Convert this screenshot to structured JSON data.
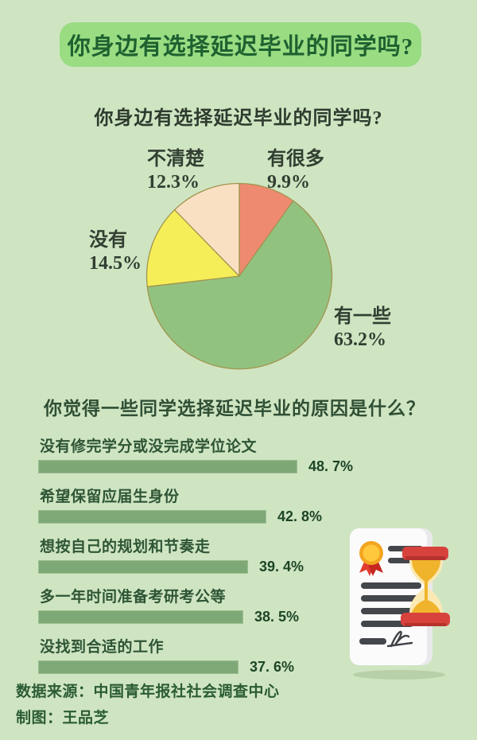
{
  "page_bg": "#cfe5c2",
  "banner": {
    "label": "你身边有选择延迟毕业的同学吗?",
    "bg": "#99dc82",
    "color": "#1e6130"
  },
  "footer": {
    "source": "数据来源：中国青年报社社会调查中心",
    "author": "制图：王品芝"
  },
  "icons": [
    "certificate-icon",
    "medal-icon",
    "hourglass-icon",
    "signature-icon"
  ],
  "chart_data": [
    {
      "type": "pie",
      "title": "你身边有选择延迟毕业的同学吗?",
      "start_angle": "top",
      "direction": "clockwise",
      "stroke": "#a1954f",
      "legend_position": "outside-labels",
      "slices": [
        {
          "label": "有很多",
          "value": 9.9,
          "display": "9.9%",
          "color": "#ee8a70"
        },
        {
          "label": "有一些",
          "value": 63.2,
          "display": "63.2%",
          "color": "#92c280"
        },
        {
          "label": "没有",
          "value": 14.5,
          "display": "14.5%",
          "color": "#f6ee58"
        },
        {
          "label": "不清楚",
          "value": 12.3,
          "display": "12.3%",
          "color": "#fae0c3"
        }
      ]
    },
    {
      "type": "bar",
      "orientation": "horizontal",
      "title": "你觉得一些同学选择延迟毕业的原因是什么？",
      "categories": [
        "没有修完学分或没完成学位论文",
        "希望保留应届生身份",
        "想按自己的规划和节奏走",
        "多一年时间准备考研考公等",
        "没找到合适的工作"
      ],
      "values": [
        48.7,
        42.8,
        39.4,
        38.5,
        37.6
      ],
      "value_labels": [
        "48. 7%",
        "42. 8%",
        "39. 4%",
        "38. 5%",
        "37. 6%"
      ],
      "bar_color": "#7ea977",
      "bar_border": "#9abd90",
      "grid": false,
      "xlim": [
        0,
        75
      ]
    }
  ]
}
